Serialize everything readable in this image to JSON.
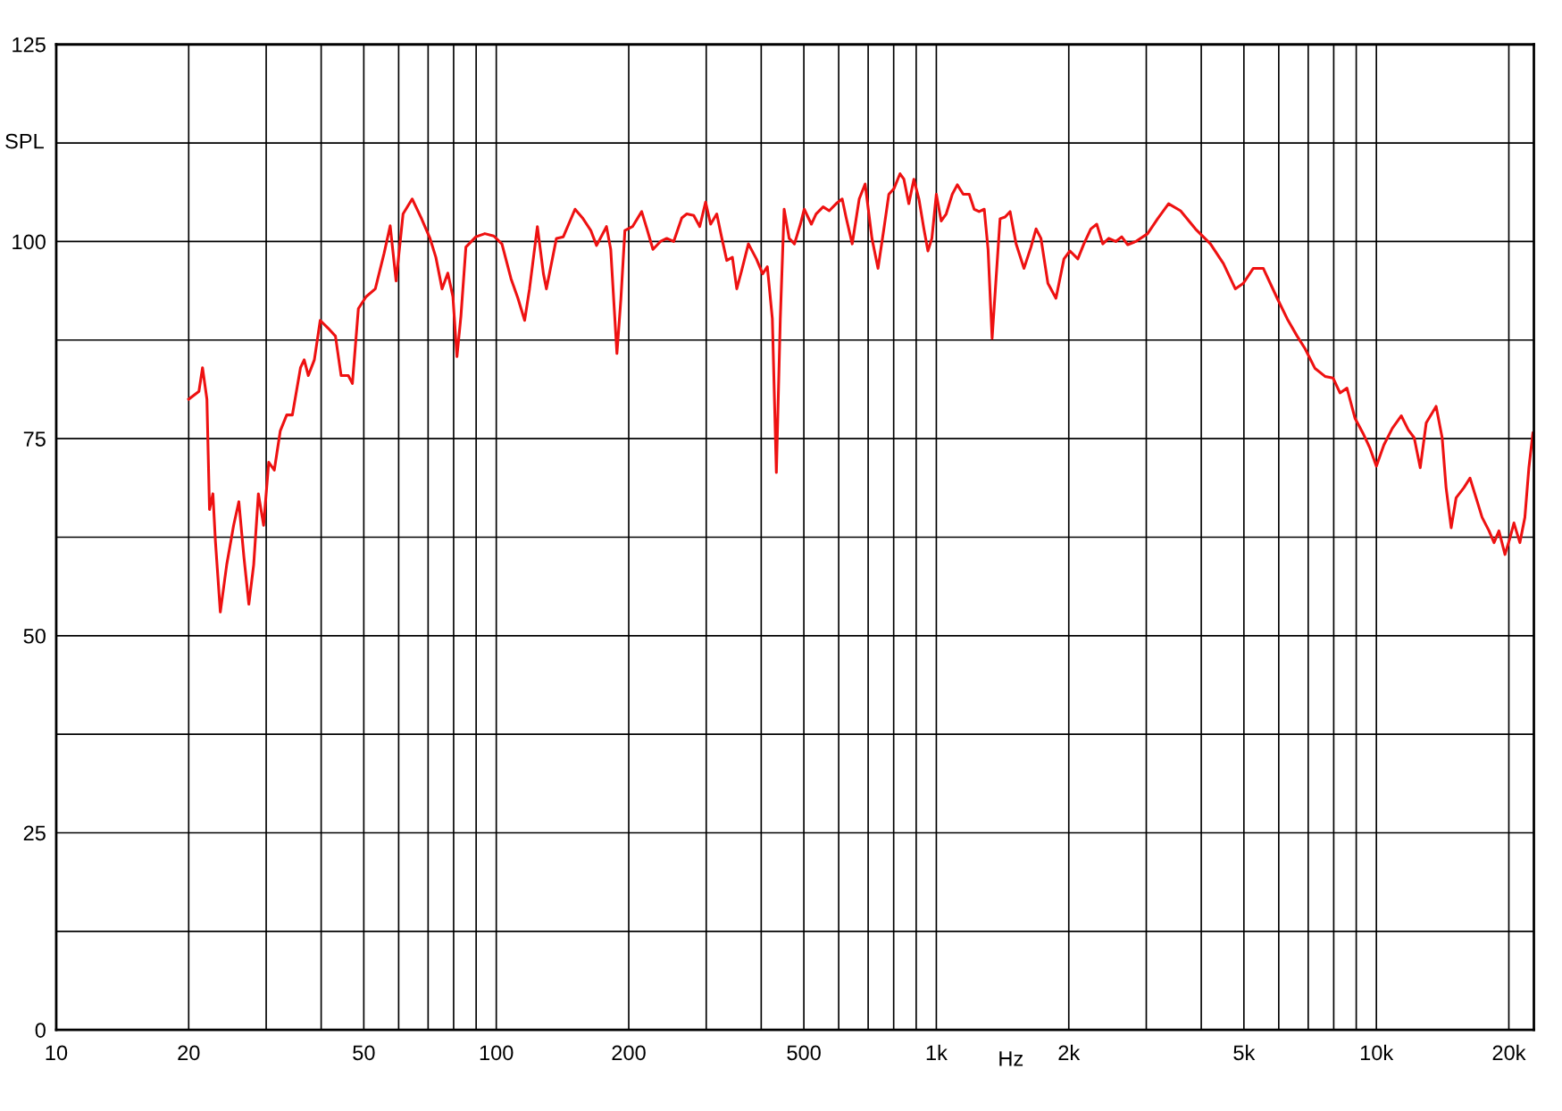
{
  "chart_data": {
    "type": "line",
    "xlabel": "Hz",
    "ylabel": "SPL",
    "log": "x",
    "grid": true,
    "marker": "none",
    "line_style": "solid",
    "xlim": [
      10,
      22800
    ],
    "ylim": [
      0,
      125
    ],
    "xticks": [
      10,
      20,
      {
        "value": 30,
        "label": null
      },
      {
        "value": 40,
        "label": null
      },
      50,
      {
        "value": 60,
        "label": null
      },
      {
        "value": 70,
        "label": null
      },
      {
        "value": 80,
        "label": null
      },
      {
        "value": 90,
        "label": null
      },
      100,
      200,
      {
        "value": 300,
        "label": null
      },
      {
        "value": 400,
        "label": null
      },
      500,
      {
        "value": 600,
        "label": null
      },
      {
        "value": 700,
        "label": null
      },
      {
        "value": 800,
        "label": null
      },
      {
        "value": 900,
        "label": null
      },
      {
        "value": 1000,
        "label": "1k"
      },
      {
        "value": 2000,
        "label": "2k"
      },
      {
        "value": 3000,
        "label": null
      },
      {
        "value": 4000,
        "label": null
      },
      {
        "value": 5000,
        "label": "5k"
      },
      {
        "value": 6000,
        "label": null
      },
      {
        "value": 7000,
        "label": null
      },
      {
        "value": 8000,
        "label": null
      },
      {
        "value": 9000,
        "label": null
      },
      {
        "value": 10000,
        "label": "10k"
      },
      {
        "value": 20000,
        "label": "20k"
      }
    ],
    "yticks": [
      0,
      {
        "value": 12.5,
        "label": null
      },
      25,
      {
        "value": 37.5,
        "label": null
      },
      50,
      {
        "value": 62.5,
        "label": null
      },
      75,
      {
        "value": 87.5,
        "label": null
      },
      100,
      {
        "value": 112.5,
        "label": null
      },
      125
    ],
    "series": [
      {
        "color": "#ee1111",
        "x": [
          20.0,
          21.1,
          21.5,
          22.0,
          22.3,
          22.7,
          23.0,
          23.6,
          24.4,
          25.3,
          26.0,
          26.7,
          27.4,
          28.1,
          28.8,
          29.6,
          30.4,
          31.3,
          32.3,
          33.4,
          34.4,
          35.9,
          36.6,
          37.4,
          38.6,
          39.8,
          41.5,
          43.1,
          44.4,
          46.1,
          47.1,
          48.6,
          50.6,
          53.1,
          55.6,
          57.4,
          59.2,
          61.4,
          64.4,
          67.5,
          70.7,
          72.9,
          75.3,
          77.6,
          79.7,
          81.4,
          83.1,
          85.3,
          89.9,
          94.2,
          98.7,
          103,
          108,
          112,
          116,
          119,
          124,
          128,
          130,
          137,
          142,
          151,
          157,
          164,
          169,
          178,
          182,
          188,
          192,
          196,
          204,
          214,
          220,
          227,
          236,
          244,
          253,
          264,
          271,
          281,
          290,
          299,
          307,
          317,
          325,
          334,
          344,
          352,
          361,
          374,
          390,
          403,
          413,
          424,
          433,
          442,
          451,
          463,
          476,
          491,
          501,
          520,
          533,
          553,
          571,
          592,
          611,
          624,
          644,
          668,
          689,
          714,
          737,
          760,
          780,
          801,
          827,
          844,
          866,
          889,
          913,
          937,
          957,
          977,
          1000,
          1026,
          1053,
          1087,
          1116,
          1151,
          1188,
          1219,
          1251,
          1285,
          1311,
          1339,
          1367,
          1396,
          1433,
          1471,
          1518,
          1582,
          1641,
          1685,
          1729,
          1793,
          1870,
          1950,
          2012,
          2097,
          2164,
          2244,
          2315,
          2389,
          2465,
          2557,
          2638,
          2722,
          2838,
          3021,
          3184,
          3371,
          3589,
          3880,
          4197,
          4492,
          4780,
          4984,
          5252,
          5533,
          5739,
          5952,
          6271,
          6606,
          6887,
          7254,
          7643,
          7970,
          8266,
          8574,
          8940,
          9320,
          9667,
          10000,
          10400,
          10870,
          11390,
          11820,
          12190,
          12580,
          12980,
          13670,
          14110,
          14400,
          14790,
          15180,
          15820,
          16320,
          16850,
          17390,
          18030,
          18510,
          18990,
          19600,
          20120,
          20540,
          21190,
          21750,
          22210,
          22680
        ],
        "values": [
          80.0,
          81,
          84,
          80,
          66,
          68,
          62,
          53,
          59,
          64,
          67,
          60,
          54,
          59,
          68,
          64,
          72,
          71,
          76,
          78,
          78,
          84,
          85,
          83,
          85,
          90,
          89,
          88,
          83,
          83,
          82,
          91.5,
          93,
          94,
          98.5,
          102,
          95,
          103.5,
          105.4,
          103,
          100.4,
          98,
          94,
          96,
          93,
          85.4,
          90.5,
          99.3,
          100.6,
          101,
          100.7,
          99.7,
          95.3,
          92.8,
          90,
          94,
          101.9,
          95.9,
          94,
          100.4,
          100.6,
          104.1,
          103,
          101.4,
          99.5,
          101.9,
          99,
          85.8,
          92.8,
          101.4,
          101.9,
          103.8,
          101.6,
          99,
          100,
          100.4,
          100,
          103,
          103.5,
          103.3,
          101.9,
          105,
          102.2,
          103.5,
          100.6,
          97.6,
          98,
          94,
          96.3,
          99.7,
          97.8,
          95.9,
          96.8,
          90.2,
          70.7,
          90.2,
          104.1,
          100.4,
          99.7,
          102.2,
          104.1,
          102.2,
          103.5,
          104.4,
          103.9,
          104.8,
          105.4,
          103,
          99.7,
          105.4,
          107.3,
          100.4,
          96.6,
          101.6,
          106,
          106.7,
          108.6,
          107.9,
          104.8,
          107.9,
          105.4,
          101.6,
          98.8,
          100.4,
          106,
          102.6,
          103.5,
          106,
          107.2,
          106,
          106,
          104.1,
          103.8,
          104.1,
          99,
          87.7,
          95.3,
          102.9,
          103.1,
          103.8,
          99.7,
          96.6,
          99.3,
          101.6,
          100.4,
          94.7,
          92.8,
          97.8,
          98.8,
          97.8,
          99.7,
          101.6,
          102.2,
          99.7,
          100.4,
          100,
          100.6,
          99.6,
          100,
          101,
          102.9,
          104.8,
          103.9,
          101.6,
          99.7,
          97.2,
          94,
          94.7,
          96.6,
          96.6,
          94.7,
          92.8,
          90.2,
          88,
          86.4,
          83.9,
          82.9,
          82.7,
          80.8,
          81.4,
          77.6,
          75.7,
          73.8,
          71.5,
          74.2,
          76.3,
          77.9,
          76.1,
          75.1,
          71.3,
          77,
          79.1,
          75.1,
          68.8,
          63.7,
          67.5,
          68.8,
          70,
          67.5,
          65,
          63.3,
          61.8,
          63.3,
          60.3,
          62.4,
          64.3,
          61.8,
          65,
          71.3,
          75.7
        ]
      }
    ]
  }
}
